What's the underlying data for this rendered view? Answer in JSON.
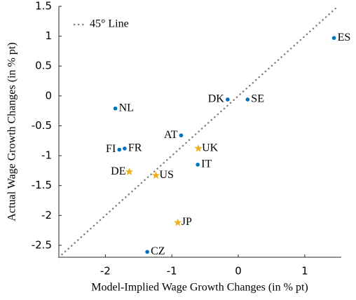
{
  "chart_data": {
    "type": "scatter",
    "xlabel": "Model-Implied Wage Growth Changes (in % pt)",
    "ylabel": "Actual Wage Growth Changes (in % pt)",
    "xlim": [
      -2.7,
      1.55
    ],
    "ylim": [
      -2.7,
      1.5
    ],
    "xticks": [
      -2,
      -1,
      0,
      1
    ],
    "yticks": [
      -2.5,
      -2,
      -1.5,
      -1,
      -0.5,
      0,
      0.5,
      1,
      1.5
    ],
    "reference_line": {
      "label": "45° Line",
      "color": "#808080"
    },
    "legend": "upper left",
    "series": [
      {
        "marker": "circle",
        "color": "#0072bd",
        "labels": [
          "ES",
          "DK",
          "SE",
          "NL",
          "AT",
          "FI",
          "FR",
          "IT",
          "CZ"
        ],
        "x": [
          1.44,
          -0.16,
          0.14,
          -1.85,
          -0.86,
          -1.79,
          -1.71,
          -0.61,
          -1.37
        ],
        "values": [
          0.97,
          -0.06,
          -0.06,
          -0.21,
          -0.66,
          -0.9,
          -0.88,
          -1.15,
          -2.61
        ]
      },
      {
        "marker": "star",
        "color": "#edb120",
        "labels": [
          "UK",
          "DE",
          "US",
          "JP"
        ],
        "x": [
          -0.6,
          -1.64,
          -1.24,
          -0.91
        ],
        "values": [
          -0.88,
          -1.27,
          -1.33,
          -2.12
        ]
      }
    ]
  }
}
